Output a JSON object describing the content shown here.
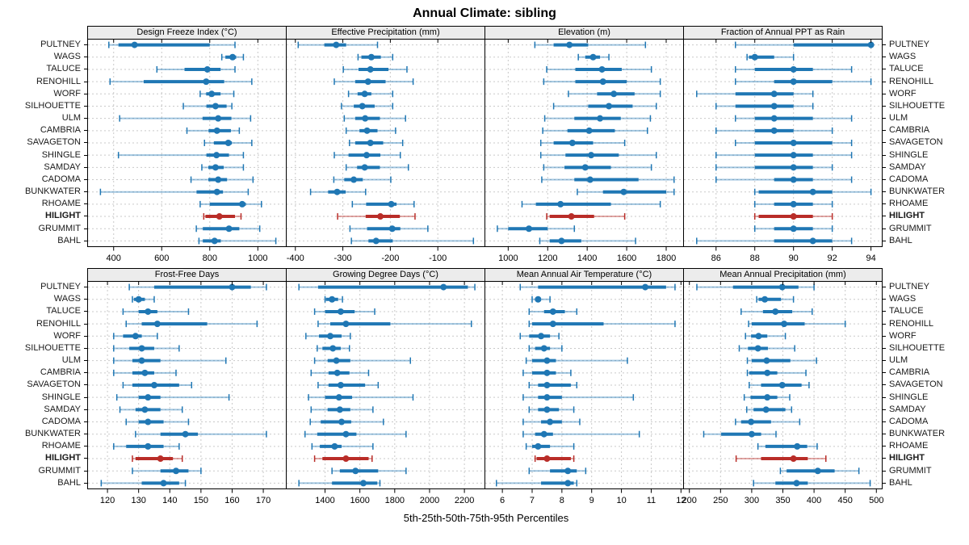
{
  "title": "Annual Climate: sibling",
  "caption": "5th-25th-50th-75th-95th Percentiles",
  "colors": {
    "series": "#1f77b4",
    "series_light": "rgba(31,119,180,0.42)",
    "highlight": "#b92d28",
    "highlight_light": "rgba(185,45,40,0.42)",
    "strip_bg": "#ececec",
    "grid": "#c9c9c9",
    "border": "#000000"
  },
  "stations": [
    "PULTNEY",
    "WAGS",
    "TALUCE",
    "RENOHILL",
    "WORF",
    "SILHOUETTE",
    "ULM",
    "CAMBRIA",
    "SAVAGETON",
    "SHINGLE",
    "SAMDAY",
    "CADOMA",
    "BUNKWATER",
    "RHOAME",
    "HILIGHT",
    "GRUMMIT",
    "BAHL"
  ],
  "highlight_station": "HILIGHT",
  "chart_data": {
    "type": "dot-interval-trellis",
    "percentiles": [
      5,
      25,
      50,
      75,
      95
    ],
    "legend_note": "each row: [p5,p25,p50,p75,p95] per station, stations ordered top-to-bottom",
    "panels": [
      {
        "title": "Design Freeze Index (°C)",
        "grid_row": 0,
        "xlim": [
          290,
          1120
        ],
        "ticks": [
          400,
          600,
          800,
          1000
        ],
        "series": [
          [
            380,
            420,
            487,
            800,
            905
          ],
          [
            850,
            865,
            895,
            910,
            940
          ],
          [
            580,
            695,
            790,
            845,
            905
          ],
          [
            385,
            525,
            785,
            860,
            975
          ],
          [
            760,
            785,
            808,
            845,
            900
          ],
          [
            690,
            786,
            824,
            870,
            892
          ],
          [
            425,
            770,
            835,
            890,
            970
          ],
          [
            705,
            795,
            830,
            888,
            923
          ],
          [
            778,
            817,
            877,
            892,
            975
          ],
          [
            420,
            786,
            828,
            880,
            940
          ],
          [
            767,
            794,
            824,
            858,
            940
          ],
          [
            722,
            794,
            835,
            872,
            980
          ],
          [
            345,
            745,
            830,
            855,
            960
          ],
          [
            760,
            800,
            935,
            950,
            1015
          ],
          [
            775,
            782,
            840,
            905,
            930
          ],
          [
            744,
            771,
            880,
            923,
            1008
          ],
          [
            755,
            771,
            820,
            846,
            1075
          ]
        ]
      },
      {
        "title": "Effective Precipitation (mm)",
        "grid_row": 0,
        "xlim": [
          -420,
          0
        ],
        "ticks": [
          -400,
          -300,
          -200,
          -100
        ],
        "series": [
          [
            -394,
            -339,
            -314,
            -293,
            -227
          ],
          [
            -268,
            -261,
            -240,
            -220,
            -195
          ],
          [
            -299,
            -267,
            -242,
            -204,
            -165
          ],
          [
            -318,
            -274,
            -247,
            -210,
            -152
          ],
          [
            -288,
            -269,
            -254,
            -240,
            -195
          ],
          [
            -303,
            -277,
            -259,
            -233,
            -195
          ],
          [
            -297,
            -274,
            -253,
            -222,
            -168
          ],
          [
            -293,
            -265,
            -249,
            -227,
            -189
          ],
          [
            -286,
            -274,
            -242,
            -215,
            -174
          ],
          [
            -318,
            -288,
            -250,
            -221,
            -179
          ],
          [
            -293,
            -270,
            -254,
            -222,
            -162
          ],
          [
            -319,
            -297,
            -277,
            -258,
            -199
          ],
          [
            -368,
            -331,
            -312,
            -294,
            -252
          ],
          [
            -280,
            -251,
            -198,
            -187,
            -150
          ],
          [
            -311,
            -252,
            -221,
            -180,
            -148
          ],
          [
            -285,
            -249,
            -196,
            -179,
            -121
          ],
          [
            -282,
            -246,
            -230,
            -195,
            -25
          ]
        ]
      },
      {
        "title": "Elevation (m)",
        "grid_row": 0,
        "xlim": [
          880,
          1890
        ],
        "ticks": [
          1000,
          1200,
          1400,
          1600,
          1800
        ],
        "series": [
          [
            1135,
            1230,
            1310,
            1405,
            1695
          ],
          [
            1355,
            1390,
            1430,
            1465,
            1510
          ],
          [
            1195,
            1340,
            1475,
            1575,
            1725
          ],
          [
            1180,
            1340,
            1480,
            1600,
            1770
          ],
          [
            1305,
            1450,
            1535,
            1640,
            1770
          ],
          [
            1230,
            1405,
            1510,
            1630,
            1750
          ],
          [
            1185,
            1335,
            1465,
            1570,
            1720
          ],
          [
            1175,
            1300,
            1410,
            1540,
            1705
          ],
          [
            1165,
            1230,
            1325,
            1430,
            1590
          ],
          [
            1165,
            1290,
            1420,
            1560,
            1750
          ],
          [
            1180,
            1285,
            1390,
            1520,
            1725
          ],
          [
            1170,
            1335,
            1415,
            1660,
            1840
          ],
          [
            1350,
            1480,
            1585,
            1800,
            1840
          ],
          [
            1070,
            1140,
            1265,
            1520,
            1770
          ],
          [
            1195,
            1210,
            1320,
            1435,
            1590
          ],
          [
            945,
            1000,
            1105,
            1200,
            1335
          ],
          [
            1160,
            1210,
            1270,
            1370,
            1645
          ]
        ]
      },
      {
        "title": "Fraction of Annual PPT as Rain",
        "grid_row": 0,
        "xlim": [
          84.3,
          94.6
        ],
        "ticks": [
          86,
          88,
          90,
          92,
          94
        ],
        "series": [
          [
            87,
            90,
            94,
            94,
            94
          ],
          [
            87.6,
            87.7,
            88,
            89,
            90
          ],
          [
            87,
            88,
            90,
            91,
            93
          ],
          [
            87,
            89,
            90,
            92,
            94
          ],
          [
            85,
            87,
            89,
            90,
            91
          ],
          [
            86,
            87,
            89,
            90,
            91
          ],
          [
            87,
            88,
            89,
            91,
            93
          ],
          [
            86,
            88,
            89,
            90,
            92
          ],
          [
            87,
            88,
            90,
            92,
            93
          ],
          [
            86,
            88,
            90,
            91,
            93
          ],
          [
            86,
            88,
            90,
            91,
            92
          ],
          [
            86,
            89,
            90,
            91,
            93
          ],
          [
            88,
            88.2,
            91,
            92,
            94
          ],
          [
            88,
            89,
            90,
            91,
            92
          ],
          [
            88,
            88.2,
            90,
            91,
            92
          ],
          [
            88,
            89,
            90,
            91,
            92
          ],
          [
            85,
            89,
            91,
            92,
            93
          ]
        ]
      },
      {
        "title": "Frost-Free Days",
        "grid_row": 1,
        "xlim": [
          113.5,
          177.5
        ],
        "ticks": [
          120,
          130,
          140,
          150,
          160,
          170
        ],
        "series": [
          [
            127,
            135,
            160,
            166,
            171
          ],
          [
            128,
            128.5,
            130,
            132,
            135
          ],
          [
            125,
            130,
            133,
            136,
            146
          ],
          [
            126,
            131,
            136,
            152,
            168
          ],
          [
            122,
            125,
            129,
            131,
            136
          ],
          [
            122,
            127,
            131,
            135,
            143
          ],
          [
            122,
            128,
            131,
            137,
            158
          ],
          [
            122,
            128,
            132,
            135,
            142
          ],
          [
            125,
            128,
            135,
            143,
            147
          ],
          [
            123,
            130,
            133,
            137,
            159
          ],
          [
            124,
            129,
            132,
            137,
            144
          ],
          [
            126,
            130,
            133,
            138,
            146
          ],
          [
            129,
            137,
            145,
            149,
            171
          ],
          [
            122,
            126,
            133,
            138,
            143
          ],
          [
            128,
            129,
            137,
            141,
            144
          ],
          [
            128,
            137,
            142,
            146,
            150
          ],
          [
            118,
            131,
            138,
            143,
            145
          ]
        ]
      },
      {
        "title": "Growing Degree Days (°C)",
        "grid_row": 1,
        "xlim": [
          1175,
          2320
        ],
        "ticks": [
          1400,
          1600,
          1800,
          2000,
          2200
        ],
        "series": [
          [
            1250,
            1360,
            2080,
            2220,
            2260
          ],
          [
            1400,
            1405,
            1440,
            1475,
            1500
          ],
          [
            1340,
            1400,
            1490,
            1570,
            1685
          ],
          [
            1360,
            1430,
            1520,
            1775,
            2240
          ],
          [
            1290,
            1365,
            1430,
            1495,
            1545
          ],
          [
            1355,
            1385,
            1445,
            1490,
            1540
          ],
          [
            1340,
            1415,
            1465,
            1545,
            1890
          ],
          [
            1320,
            1420,
            1470,
            1540,
            1650
          ],
          [
            1360,
            1420,
            1490,
            1630,
            1705
          ],
          [
            1305,
            1400,
            1480,
            1555,
            1905
          ],
          [
            1320,
            1415,
            1485,
            1545,
            1675
          ],
          [
            1315,
            1375,
            1495,
            1550,
            1735
          ],
          [
            1285,
            1355,
            1520,
            1580,
            1865
          ],
          [
            1325,
            1370,
            1455,
            1495,
            1675
          ],
          [
            1340,
            1385,
            1520,
            1650,
            1670
          ],
          [
            1440,
            1485,
            1575,
            1705,
            1865
          ],
          [
            1250,
            1440,
            1620,
            1700,
            1715
          ]
        ]
      },
      {
        "title": "Mean Annual Air Temperature (°C)",
        "grid_row": 1,
        "xlim": [
          5.4,
          12.1
        ],
        "ticks": [
          6,
          7,
          8,
          9,
          10,
          11,
          12
        ],
        "series": [
          [
            6.6,
            7.2,
            10.8,
            11.5,
            11.8
          ],
          [
            7.0,
            7.1,
            7.2,
            7.3,
            7.6
          ],
          [
            6.9,
            7.4,
            7.7,
            8.1,
            8.5
          ],
          [
            6.9,
            7.0,
            7.7,
            9.4,
            11.8
          ],
          [
            6.6,
            6.9,
            7.3,
            7.6,
            7.9
          ],
          [
            6.9,
            7.1,
            7.4,
            7.6,
            8.0
          ],
          [
            6.8,
            7.0,
            7.5,
            7.8,
            10.2
          ],
          [
            6.7,
            7.0,
            7.5,
            7.8,
            8.3
          ],
          [
            6.9,
            7.2,
            7.5,
            8.3,
            8.5
          ],
          [
            6.7,
            7.2,
            7.5,
            8.0,
            10.4
          ],
          [
            6.9,
            7.2,
            7.5,
            7.9,
            8.4
          ],
          [
            6.7,
            7.3,
            7.6,
            8.0,
            8.6
          ],
          [
            6.7,
            7.1,
            7.4,
            7.7,
            10.6
          ],
          [
            6.8,
            7.0,
            7.2,
            7.6,
            8.4
          ],
          [
            7.1,
            7.15,
            7.5,
            8.3,
            8.4
          ],
          [
            6.9,
            7.6,
            8.2,
            8.5,
            8.8
          ],
          [
            5.8,
            7.3,
            8.2,
            8.4,
            8.5
          ]
        ]
      },
      {
        "title": "Mean Annual Precipitation (mm)",
        "grid_row": 1,
        "xlim": [
          190,
          510
        ],
        "ticks": [
          200,
          250,
          300,
          350,
          400,
          450,
          500
        ],
        "series": [
          [
            212,
            270,
            349,
            375,
            400
          ],
          [
            308,
            311,
            321,
            347,
            367
          ],
          [
            283,
            318,
            338,
            365,
            397
          ],
          [
            295,
            300,
            352,
            385,
            450
          ],
          [
            290,
            299,
            311,
            325,
            354
          ],
          [
            280,
            294,
            310,
            326,
            369
          ],
          [
            293,
            300,
            324,
            362,
            404
          ],
          [
            293,
            296,
            325,
            341,
            387
          ],
          [
            296,
            315,
            349,
            380,
            392
          ],
          [
            288,
            298,
            325,
            341,
            361
          ],
          [
            292,
            303,
            323,
            354,
            364
          ],
          [
            274,
            283,
            299,
            331,
            377
          ],
          [
            223,
            251,
            300,
            315,
            339
          ],
          [
            310,
            322,
            373,
            389,
            405
          ],
          [
            275,
            315,
            367,
            390,
            419
          ],
          [
            346,
            356,
            406,
            433,
            472
          ],
          [
            303,
            338,
            372,
            390,
            490
          ]
        ]
      }
    ]
  }
}
